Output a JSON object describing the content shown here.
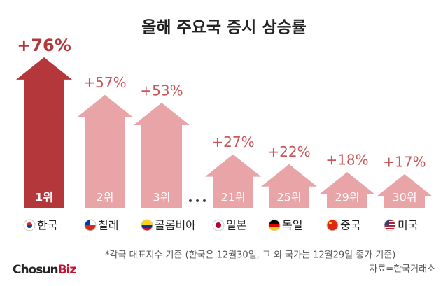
{
  "chart_data": {
    "type": "arrow-bar",
    "title": "올해 주요국 증시 상승률",
    "categories": [
      "한국",
      "칠레",
      "콜롬비아",
      "일본",
      "독일",
      "중국",
      "미국"
    ],
    "values": [
      76,
      57,
      53,
      27,
      22,
      18,
      17
    ],
    "value_labels": [
      "+76%",
      "+57%",
      "+53%",
      "+27%",
      "+22%",
      "+18%",
      "+17%"
    ],
    "ranks": [
      "1위",
      "2위",
      "3위",
      "21위",
      "25위",
      "29위",
      "30위"
    ],
    "highlight_color": "#b3373b",
    "color": "#e8a4a6",
    "label_color": "#c9585b",
    "footnote": "*각국 대표지수 기준 (한국은 12월30일, 그 외 국가는 12월29일 종가 기준)",
    "source": "자료=한국거래소"
  },
  "logo": {
    "part1": "Chosun",
    "part2": "Biz"
  }
}
